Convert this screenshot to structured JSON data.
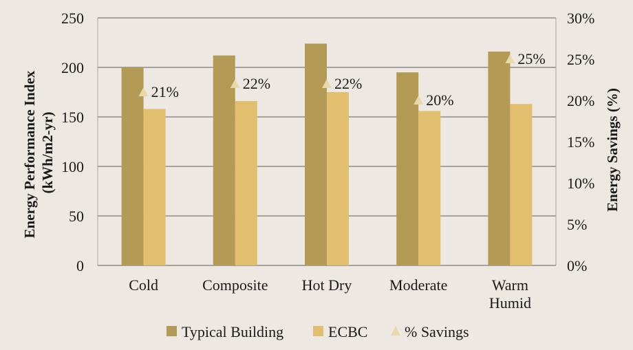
{
  "chart_data": {
    "type": "bar",
    "categories": [
      "Cold",
      "Composite",
      "Hot Dry",
      "Moderate",
      "Warm Humid"
    ],
    "series": [
      {
        "name": "Typical Building",
        "values": [
          200,
          212,
          224,
          195,
          216
        ],
        "color": "#b39a55"
      },
      {
        "name": "ECBC",
        "values": [
          158,
          166,
          175,
          156,
          163
        ],
        "color": "#e1bf6e"
      }
    ],
    "line_series": {
      "name": "% Savings",
      "values": [
        21,
        22,
        22,
        20,
        25
      ],
      "labels": [
        "21%",
        "22%",
        "22%",
        "20%",
        "25%"
      ],
      "marker": "triangle",
      "color": "#e9d8ac"
    },
    "title": "",
    "ylabel": "Energy Performance Index (kWh/m2-yr)",
    "ylabel_lines": [
      "Energy Performance Index",
      "(kWh/m2-yr)"
    ],
    "y2label": "Energy Savings (%)",
    "ylim": [
      0,
      250
    ],
    "yticks": [
      0,
      50,
      100,
      150,
      200,
      250
    ],
    "y2lim": [
      0,
      30
    ],
    "y2ticks": [
      "0%",
      "5%",
      "10%",
      "15%",
      "20%",
      "25%",
      "30%"
    ],
    "grid": true,
    "legend_position": "bottom"
  }
}
